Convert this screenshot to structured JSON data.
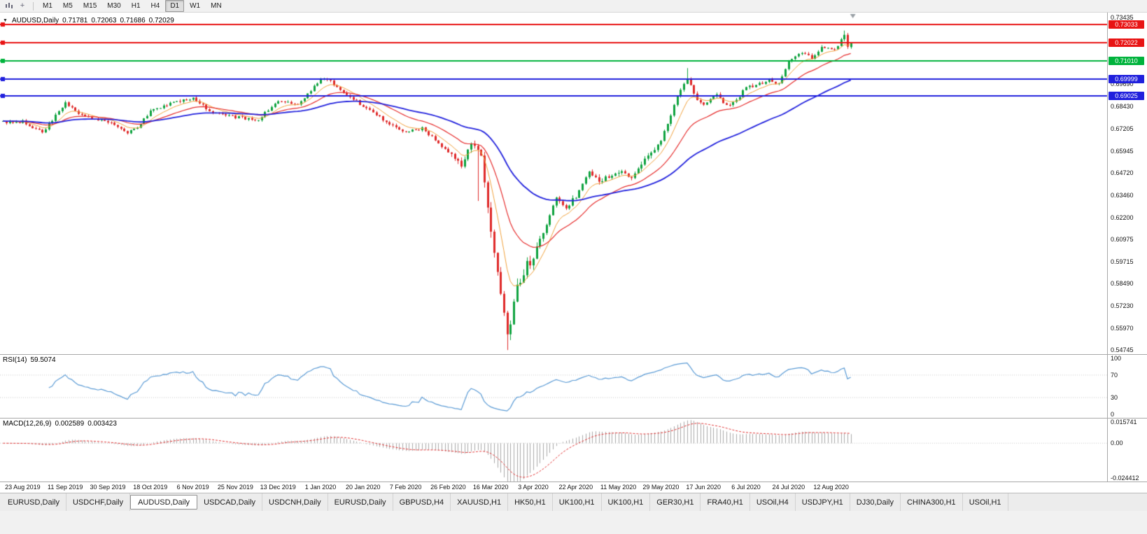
{
  "toolbar": {
    "timeframes": [
      {
        "label": "M1",
        "active": false
      },
      {
        "label": "M5",
        "active": false
      },
      {
        "label": "M15",
        "active": false
      },
      {
        "label": "M30",
        "active": false
      },
      {
        "label": "H1",
        "active": false
      },
      {
        "label": "H4",
        "active": false
      },
      {
        "label": "D1",
        "active": true
      },
      {
        "label": "W1",
        "active": false
      },
      {
        "label": "MN",
        "active": false
      }
    ]
  },
  "chart": {
    "title": {
      "symbol_period": "AUDUSD,Daily",
      "open": "0.71781",
      "high": "0.72063",
      "low": "0.71686",
      "close": "0.72029"
    },
    "price_axis": {
      "range": [
        0.5452,
        0.7372
      ],
      "ticks": [
        {
          "label": "0.73435",
          "value": 0.73435
        },
        {
          "label": "0.69690",
          "value": 0.6969
        },
        {
          "label": "0.68430",
          "value": 0.6843
        },
        {
          "label": "0.67205",
          "value": 0.67205
        },
        {
          "label": "0.65945",
          "value": 0.65945
        },
        {
          "label": "0.64720",
          "value": 0.6472
        },
        {
          "label": "0.63460",
          "value": 0.6346
        },
        {
          "label": "0.62200",
          "value": 0.622
        },
        {
          "label": "0.60975",
          "value": 0.60975
        },
        {
          "label": "0.59715",
          "value": 0.59715
        },
        {
          "label": "0.58490",
          "value": 0.5849
        },
        {
          "label": "0.57230",
          "value": 0.5723
        },
        {
          "label": "0.55970",
          "value": 0.5597
        },
        {
          "label": "0.54745",
          "value": 0.54745
        }
      ]
    },
    "dates": [
      "23 Aug 2019",
      "11 Sep 2019",
      "30 Sep 2019",
      "18 Oct 2019",
      "6 Nov 2019",
      "25 Nov 2019",
      "13 Dec 2019",
      "1 Jan 2020",
      "20 Jan 2020",
      "7 Feb 2020",
      "26 Feb 2020",
      "16 Mar 2020",
      "3 Apr 2020",
      "22 Apr 2020",
      "11 May 2020",
      "29 May 2020",
      "17 Jun 2020",
      "6 Jul 2020",
      "24 Jul 2020",
      "12 Aug 2020"
    ]
  },
  "rsi": {
    "name": "RSI(14)",
    "value": "59.5074",
    "ticks": [
      {
        "label": "100",
        "value": 100
      },
      {
        "label": "70",
        "value": 70
      },
      {
        "label": "30",
        "value": 30
      },
      {
        "label": "0",
        "value": 0
      }
    ]
  },
  "macd": {
    "name": "MACD(12,26,9)",
    "value_main": "0.002589",
    "value_signal": "0.003423",
    "ticks": [
      {
        "label": "0.015741",
        "value": 0.015741
      },
      {
        "label": "0.00",
        "value": 0
      },
      {
        "label": "-0.024412",
        "value": -0.024412
      }
    ]
  },
  "tabs": [
    {
      "label": "EURUSD,Daily",
      "active": false
    },
    {
      "label": "USDCHF,Daily",
      "active": false
    },
    {
      "label": "AUDUSD,Daily",
      "active": true
    },
    {
      "label": "USDCAD,Daily",
      "active": false
    },
    {
      "label": "USDCNH,Daily",
      "active": false
    },
    {
      "label": "EURUSD,Daily",
      "active": false
    },
    {
      "label": "GBPUSD,H4",
      "active": false
    },
    {
      "label": "XAUUSD,H1",
      "active": false
    },
    {
      "label": "HK50,H1",
      "active": false
    },
    {
      "label": "UK100,H1",
      "active": false
    },
    {
      "label": "UK100,H1",
      "active": false
    },
    {
      "label": "GER30,H1",
      "active": false
    },
    {
      "label": "FRA40,H1",
      "active": false
    },
    {
      "label": "USOil,H4",
      "active": false
    },
    {
      "label": "USDJPY,H1",
      "active": false
    },
    {
      "label": "DJ30,Daily",
      "active": false
    },
    {
      "label": "CHINA300,H1",
      "active": false
    },
    {
      "label": "USOil,H1",
      "active": false
    }
  ],
  "chart_data": {
    "type": "candlestick",
    "symbol": "AUDUSD",
    "timeframe": "Daily",
    "current_bar": {
      "open": 0.71781,
      "high": 0.72063,
      "low": 0.71686,
      "close": 0.72029
    },
    "bars": 260,
    "date_start": 6,
    "date_step": 13,
    "price_path_anchors": [
      [
        0,
        0.6755
      ],
      [
        6,
        0.676
      ],
      [
        12,
        0.67
      ],
      [
        19,
        0.686
      ],
      [
        24,
        0.679
      ],
      [
        32,
        0.6755
      ],
      [
        38,
        0.67
      ],
      [
        41,
        0.673
      ],
      [
        45,
        0.682
      ],
      [
        52,
        0.687
      ],
      [
        58,
        0.689
      ],
      [
        64,
        0.681
      ],
      [
        71,
        0.6785
      ],
      [
        78,
        0.677
      ],
      [
        84,
        0.688
      ],
      [
        90,
        0.685
      ],
      [
        97,
        0.7
      ],
      [
        100,
        0.6985
      ],
      [
        110,
        0.6845
      ],
      [
        116,
        0.677
      ],
      [
        123,
        0.67
      ],
      [
        128,
        0.672
      ],
      [
        136,
        0.659
      ],
      [
        140,
        0.652
      ],
      [
        143,
        0.664
      ],
      [
        146,
        0.658
      ],
      [
        149,
        0.613
      ],
      [
        152,
        0.578
      ],
      [
        154,
        0.555
      ],
      [
        157,
        0.582
      ],
      [
        160,
        0.595
      ],
      [
        162,
        0.6
      ],
      [
        166,
        0.618
      ],
      [
        169,
        0.633
      ],
      [
        172,
        0.628
      ],
      [
        175,
        0.634
      ],
      [
        179,
        0.648
      ],
      [
        182,
        0.642
      ],
      [
        188,
        0.648
      ],
      [
        192,
        0.644
      ],
      [
        196,
        0.655
      ],
      [
        201,
        0.665
      ],
      [
        206,
        0.69
      ],
      [
        209,
        0.7
      ],
      [
        212,
        0.688
      ],
      [
        214,
        0.686
      ],
      [
        218,
        0.691
      ],
      [
        221,
        0.685
      ],
      [
        224,
        0.688
      ],
      [
        227,
        0.695
      ],
      [
        231,
        0.697
      ],
      [
        234,
        0.699
      ],
      [
        237,
        0.697
      ],
      [
        240,
        0.71
      ],
      [
        244,
        0.715
      ],
      [
        247,
        0.712
      ],
      [
        250,
        0.718
      ],
      [
        253,
        0.716
      ],
      [
        255,
        0.719
      ],
      [
        257,
        0.724
      ],
      [
        258,
        0.7185
      ],
      [
        259,
        0.72029
      ]
    ],
    "spikes": [
      {
        "i": 145,
        "low": 0.6313
      },
      {
        "i": 154,
        "low": 0.5475
      },
      {
        "i": 209,
        "high": 0.706
      },
      {
        "i": 257,
        "high": 0.7271
      }
    ],
    "levels": [
      {
        "price": 0.73033,
        "label": "0.73033",
        "color": "#e81414"
      },
      {
        "price": 0.72022,
        "label": "0.72022",
        "color": "#e81414"
      },
      {
        "price": 0.7101,
        "label": "0.71010",
        "color": "#00b33c"
      },
      {
        "price": 0.69999,
        "label": "0.69999",
        "color": "#2020dd"
      },
      {
        "price": 0.69025,
        "label": "0.69025",
        "color": "#2020dd"
      }
    ],
    "moving_averages": [
      {
        "period": 8,
        "color": "#f0a13c",
        "width": 1
      },
      {
        "period": 21,
        "color": "#e62e2e",
        "width": 1.2
      },
      {
        "period": 55,
        "color": "#2424dd",
        "width": 1.8
      }
    ],
    "rsi": {
      "period": 14,
      "last": 59.5074
    },
    "macd": {
      "fast": 12,
      "slow": 26,
      "signal": 9,
      "last_main": 0.002589,
      "last_signal": 0.003423,
      "scale_max": 0.015741,
      "scale_min": -0.024412
    },
    "colors": {
      "up": "#0fa33f",
      "down": "#df2a2a",
      "rsi": "#5b9bd5",
      "macd_hist": "#a9a9a9",
      "macd_signal": "#e03030"
    }
  }
}
